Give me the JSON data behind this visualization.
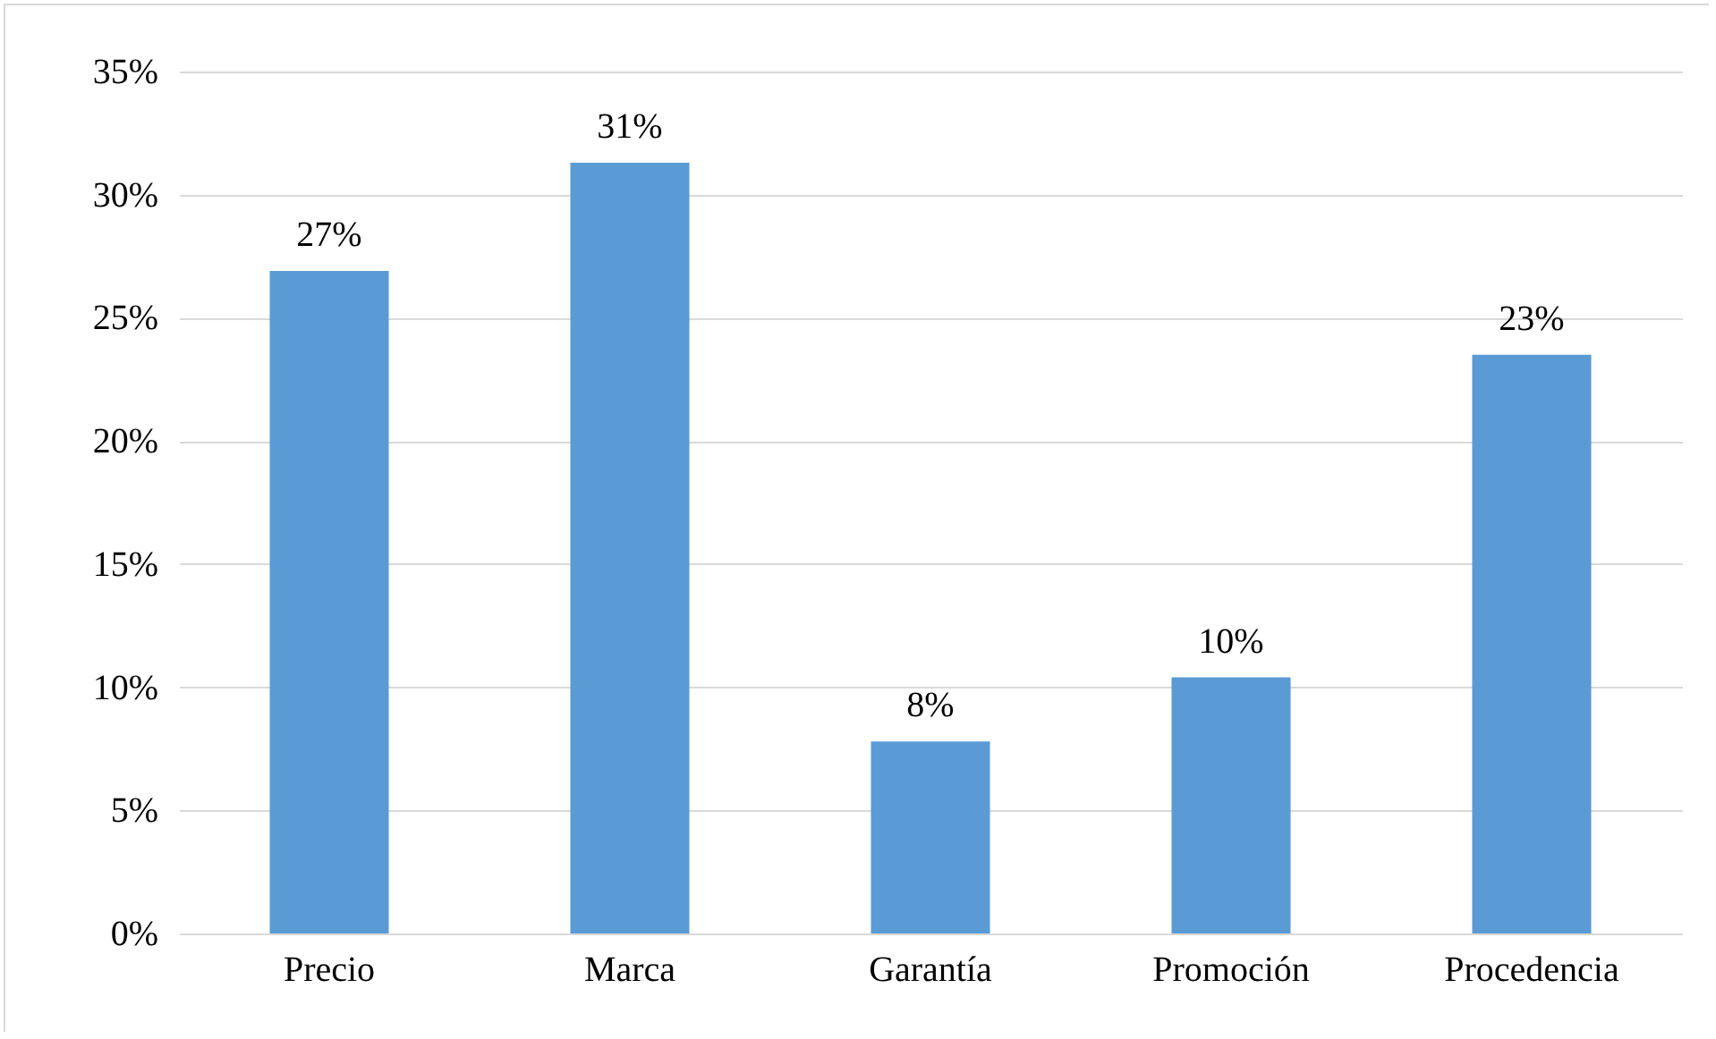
{
  "chart_data": {
    "type": "bar",
    "categories": [
      "Precio",
      "Marca",
      "Garantía",
      "Promoción",
      "Procedencia"
    ],
    "values": [
      26.9,
      31.3,
      7.8,
      10.4,
      23.5
    ],
    "value_labels": [
      "27%",
      "31%",
      "8%",
      "10%",
      "23%"
    ],
    "color": "#5b9bd5",
    "ylim": [
      0,
      35
    ],
    "yticks": [
      {
        "value": 0,
        "label": "0%"
      },
      {
        "value": 5,
        "label": "5%"
      },
      {
        "value": 10,
        "label": "10%"
      },
      {
        "value": 15,
        "label": "15%"
      },
      {
        "value": 20,
        "label": "20%"
      },
      {
        "value": 25,
        "label": "25%"
      },
      {
        "value": 30,
        "label": "30%"
      },
      {
        "value": 35,
        "label": "35%"
      }
    ],
    "grid": "y"
  }
}
